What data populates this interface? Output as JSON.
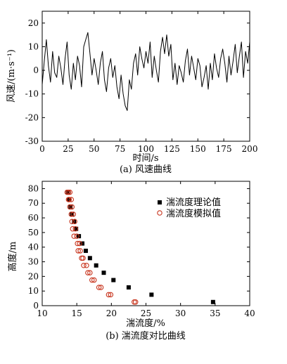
{
  "chart_data": [
    {
      "type": "line",
      "caption": "(a) 风速曲线",
      "xlabel": "时间/s",
      "ylabel": "风速/(m·s⁻¹)",
      "xlim": [
        0,
        200
      ],
      "ylim": [
        -30,
        25
      ],
      "xticks": [
        0,
        25,
        50,
        75,
        100,
        125,
        150,
        175,
        200
      ],
      "yticks": [
        -30,
        -20,
        -10,
        0,
        10,
        20
      ],
      "series": [
        {
          "x": [
            0,
            2,
            4,
            6,
            8,
            10,
            12,
            14,
            16,
            18,
            20,
            22,
            24,
            26,
            28,
            30,
            32,
            34,
            36,
            38,
            40,
            42,
            44,
            46,
            48,
            50,
            52,
            54,
            56,
            58,
            60,
            62,
            64,
            66,
            68,
            70,
            72,
            74,
            76,
            78,
            80,
            82,
            84,
            86,
            88,
            90,
            92,
            94,
            96,
            98,
            100,
            102,
            104,
            106,
            108,
            110,
            112,
            114,
            116,
            118,
            120,
            122,
            124,
            126,
            128,
            130,
            132,
            134,
            136,
            138,
            140,
            142,
            144,
            146,
            148,
            150,
            152,
            154,
            156,
            158,
            160,
            162,
            164,
            166,
            168,
            170,
            172,
            174,
            176,
            178,
            180,
            182,
            184,
            186,
            188,
            190,
            192,
            194,
            196,
            198,
            200
          ],
          "y": [
            -6,
            4,
            13,
            2,
            -5,
            8,
            -1,
            -3,
            6,
            1,
            -6,
            5,
            12,
            -2,
            -8,
            3,
            -4,
            6,
            2,
            -7,
            10,
            13,
            16,
            7,
            -2,
            5,
            0,
            -6,
            3,
            8,
            -4,
            -9,
            1,
            5,
            -3,
            2,
            -7,
            -12,
            -2,
            -10,
            -15,
            -17,
            -4,
            -8,
            3,
            7,
            -2,
            10,
            5,
            1,
            8,
            3,
            12,
            -3,
            6,
            0,
            -5,
            8,
            14,
            7,
            15,
            6,
            11,
            -4,
            3,
            -6,
            2,
            -1,
            -5,
            4,
            9,
            -2,
            6,
            1,
            -4,
            5,
            2,
            -7,
            -3,
            2,
            -8,
            3,
            -4,
            7,
            1,
            -3,
            5,
            9,
            3,
            -5,
            6,
            -2,
            4,
            11,
            -1,
            6,
            12,
            -3,
            8,
            3,
            12
          ]
        }
      ]
    },
    {
      "type": "scatter",
      "caption": "(b) 湍流度对比曲线",
      "xlabel": "湍流度/%",
      "ylabel": "高度/m",
      "xlim": [
        10,
        40
      ],
      "ylim": [
        0,
        85
      ],
      "xticks": [
        10,
        15,
        20,
        25,
        30,
        35,
        40
      ],
      "yticks": [
        0,
        10,
        20,
        30,
        40,
        50,
        60,
        70,
        80
      ],
      "legend_position": "top-right",
      "series": [
        {
          "name": "湍流度理论值",
          "marker": "filled-square",
          "x": [
            34.7,
            25.8,
            22.5,
            20.3,
            18.9,
            17.8,
            16.9,
            16.3,
            15.8,
            15.3,
            14.9,
            14.6,
            14.3,
            14.1,
            13.9,
            13.7
          ],
          "y": [
            2.5,
            7.5,
            12.5,
            17.5,
            22.5,
            27.5,
            32.5,
            37.5,
            42.5,
            47.5,
            52.5,
            57.5,
            62.5,
            67.5,
            72.5,
            77.5
          ]
        },
        {
          "name": "湍流度模拟值",
          "marker": "open-circle",
          "x": [
            23.5,
            23.3,
            19.9,
            19.6,
            18.5,
            18.2,
            17.5,
            17.2,
            16.9,
            16.6,
            16.4,
            16.0,
            15.7,
            15.9,
            15.5,
            15.2,
            15.4,
            15.1,
            15.0,
            14.6,
            14.8,
            14.4,
            14.7,
            14.3,
            14.5,
            14.2,
            14.0,
            14.3,
            13.9,
            14.2,
            13.8,
            14.0,
            13.6,
            13.8
          ],
          "y": [
            2.5,
            2.5,
            7.5,
            7.5,
            12.5,
            12.5,
            17.5,
            17.5,
            22.5,
            22.5,
            27.5,
            27.5,
            32.5,
            32.5,
            37.5,
            37.5,
            42.5,
            42.5,
            47.5,
            47.5,
            52.5,
            52.5,
            57.5,
            57.5,
            62.5,
            62.5,
            67.5,
            67.5,
            72.5,
            72.5,
            77.5,
            77.5,
            77.5,
            72.5
          ]
        }
      ]
    }
  ]
}
